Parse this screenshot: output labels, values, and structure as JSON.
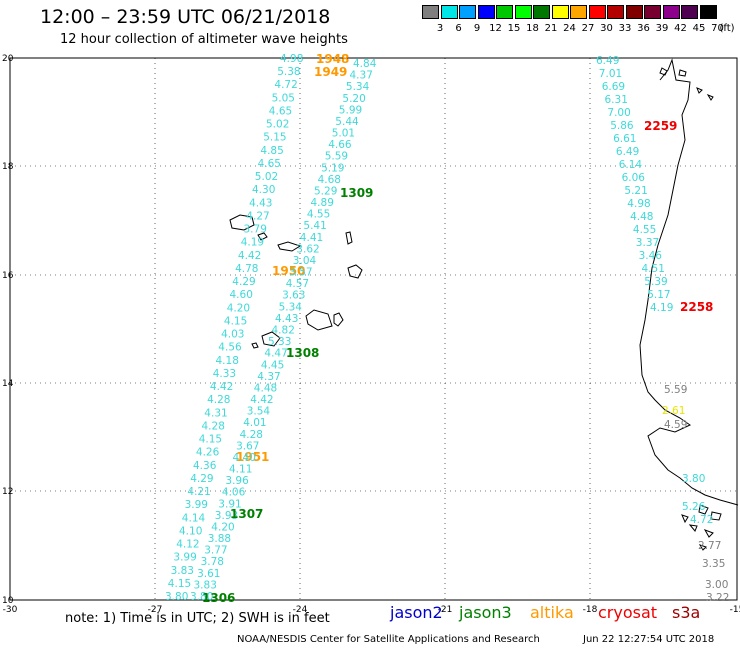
{
  "title": "12:00 – 23:59 UTC 06/21/2018",
  "subtitle": "12 hour collection of altimeter wave heights",
  "legend": {
    "unit": "(ft)",
    "labels": [
      "3",
      "6",
      "9",
      "12",
      "15",
      "18",
      "21",
      "24",
      "27",
      "30",
      "33",
      "36",
      "39",
      "42",
      "45",
      "70"
    ],
    "colors": [
      "#7f7f7f",
      "#00e5e5",
      "#00a0ff",
      "#0000ff",
      "#00c800",
      "#00ff00",
      "#007800",
      "#ffff00",
      "#ffa500",
      "#ff0000",
      "#b40000",
      "#800000",
      "#780030",
      "#8c008c",
      "#500050",
      "#000000"
    ]
  },
  "axes": {
    "lon_ticks": [
      "-30",
      "-27",
      "-24",
      "-21",
      "-18",
      "-15"
    ],
    "lat_ticks": [
      "10",
      "12",
      "14",
      "16",
      "18",
      "20"
    ]
  },
  "tracks": [
    {
      "satellite": "altika",
      "times": [
        "1948",
        "1949",
        "1950",
        "1951"
      ],
      "values": [
        "4.98",
        "5.38",
        "4.72",
        "5.05",
        "4.65",
        "5.02",
        "5.15",
        "4.85",
        "4.65",
        "5.02",
        "4.30",
        "4.43",
        "4.27",
        "3.79",
        "4.19",
        "4.42",
        "4.78",
        "4.29",
        "4.60",
        "4.20",
        "4.15",
        "4.03",
        "4.56",
        "4.18",
        "4.33",
        "4.42",
        "4.28",
        "4.31",
        "4.28",
        "4.15",
        "4.26",
        "4.36",
        "4.29",
        "4.21",
        "3.99",
        "4.14",
        "4.10",
        "4.12",
        "3.99",
        "3.83",
        "4.15",
        "3.80"
      ]
    },
    {
      "satellite": "jason3",
      "times": [
        "1309",
        "1308",
        "1307",
        "1306"
      ],
      "values": [
        "4.84",
        "4.37",
        "5.34",
        "5.20",
        "5.99",
        "5.44",
        "5.01",
        "4.66",
        "5.59",
        "5.19",
        "4.68",
        "5.29",
        "4.89",
        "4.55",
        "5.41",
        "4.41",
        "3.62",
        "3.04",
        "3.57",
        "4.57",
        "3.63",
        "5.34",
        "4.43",
        "4.82",
        "5.33",
        "4.47",
        "4.45",
        "4.37",
        "4.48",
        "4.42",
        "3.54",
        "4.01",
        "4.28",
        "3.67",
        "4.40",
        "4.11",
        "3.96",
        "4.06",
        "3.91",
        "3.93",
        "4.20",
        "3.88",
        "3.77",
        "3.78",
        "3.61",
        "3.83",
        "3.80"
      ]
    },
    {
      "satellite": "cryosat",
      "times": [
        "2259",
        "2258"
      ],
      "values": [
        "6.49",
        "7.01",
        "6.69",
        "6.31",
        "7.00",
        "5.86",
        "6.61",
        "6.49",
        "6.14",
        "6.06",
        "5.21",
        "4.98",
        "4.48",
        "4.55",
        "3.37",
        "3.46",
        "4.51",
        "5.39",
        "5.17",
        "4.19"
      ]
    },
    {
      "satellite": "jason2",
      "times": [],
      "values": [
        "5.59",
        "2.61",
        "4.59",
        "3.80",
        "5.26",
        "4.72",
        "2.77",
        "3.35",
        "3.00",
        "3.22"
      ]
    }
  ],
  "note": "note: 1) Time is in UTC; 2) SWH is in feet",
  "satellites": [
    {
      "name": "jason2",
      "color": "#0000cc"
    },
    {
      "name": "jason3",
      "color": "#008000"
    },
    {
      "name": "altika",
      "color": "#ff9900"
    },
    {
      "name": "cryosat",
      "color": "#ee0000"
    },
    {
      "name": "s3a",
      "color": "#9b0000"
    }
  ],
  "footer": {
    "credit": "NOAA/NESDIS Center for Satellite Applications and Research",
    "timestamp": "Jun 22 12:27:54 UTC 2018"
  }
}
